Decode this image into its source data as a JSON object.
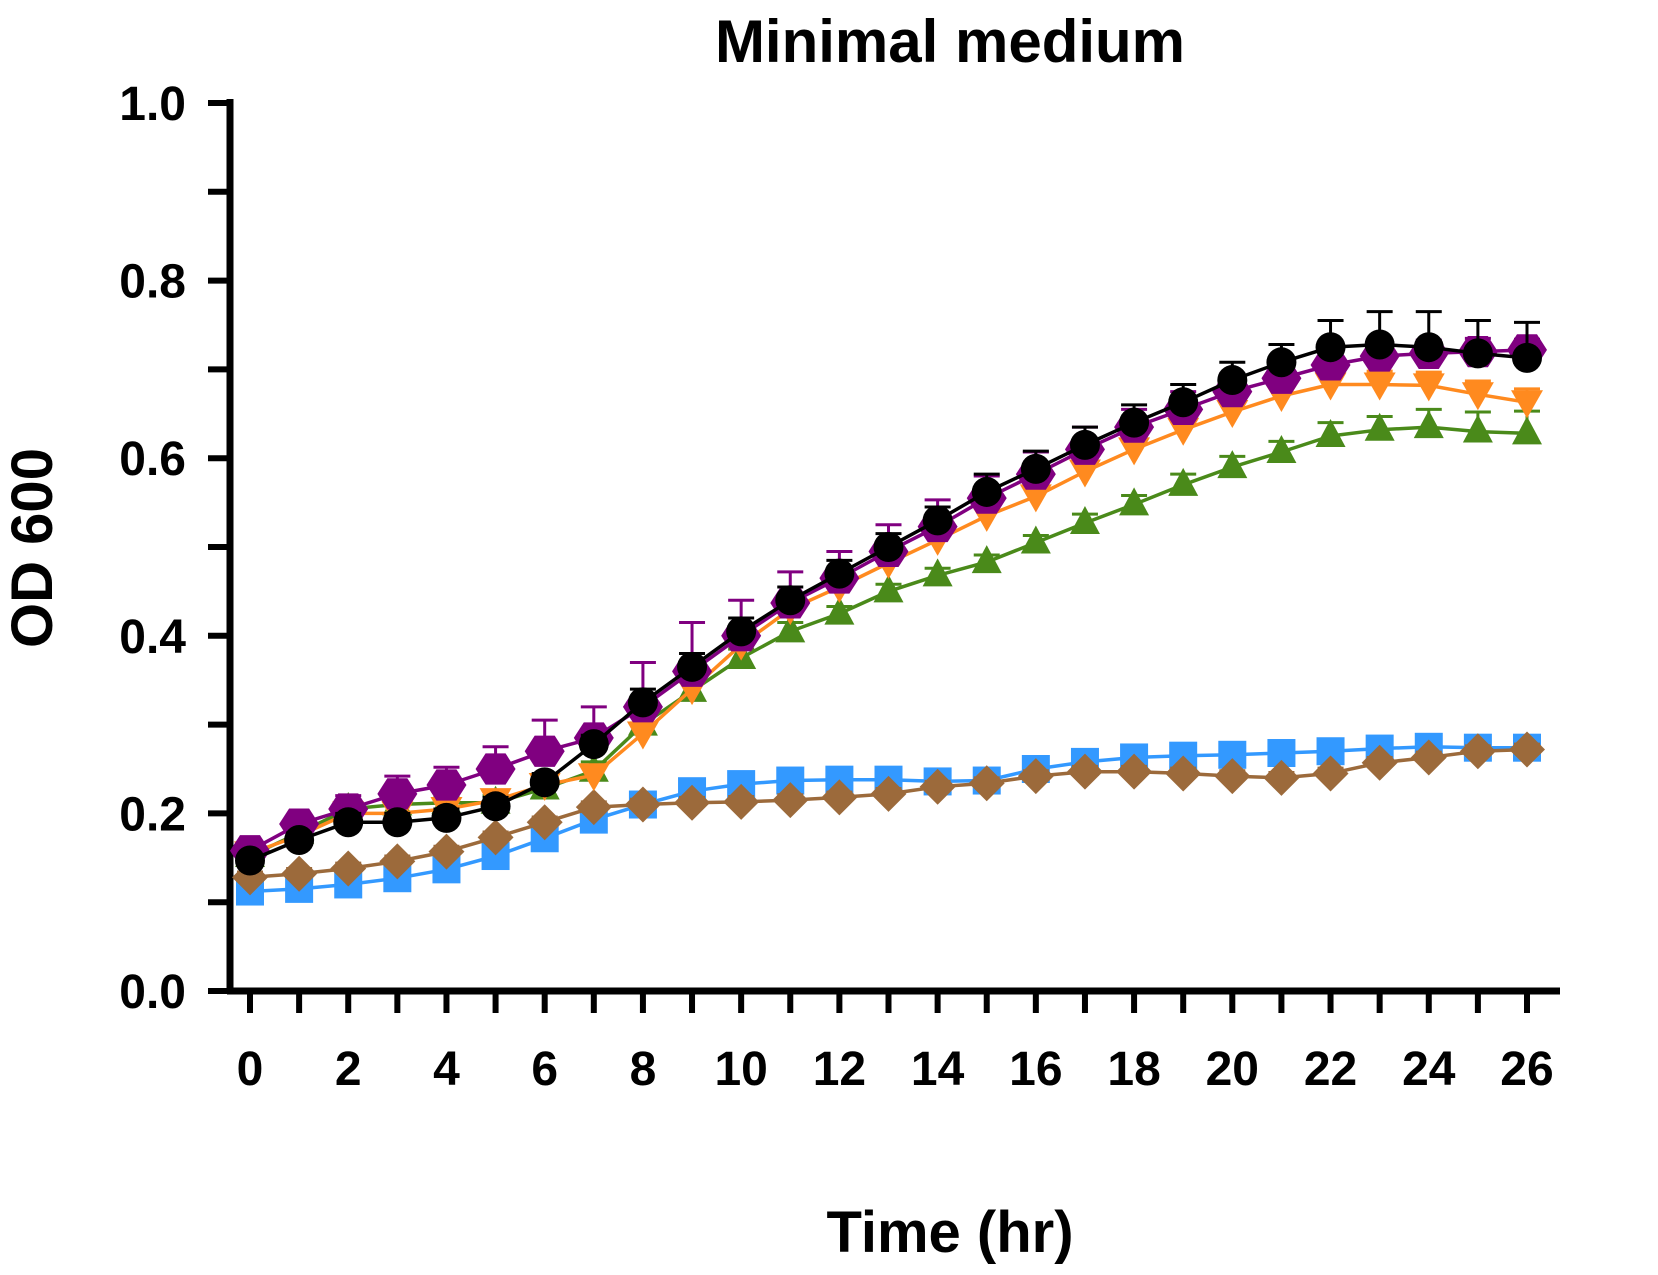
{
  "chart_data": {
    "type": "line",
    "title": "Minimal medium",
    "xlabel": "Time (hr)",
    "ylabel": "OD 600",
    "xlim": [
      0,
      26
    ],
    "ylim": [
      0,
      1.0
    ],
    "x_ticks": [
      "0",
      "2",
      "4",
      "6",
      "8",
      "10",
      "12",
      "14",
      "16",
      "18",
      "20",
      "22",
      "24",
      "26"
    ],
    "y_ticks": [
      "0.0",
      "0.2",
      "0.4",
      "0.6",
      "0.8",
      "1.0"
    ],
    "grid": false,
    "legend": "none",
    "x": [
      0,
      1,
      2,
      3,
      4,
      5,
      6,
      7,
      8,
      9,
      10,
      11,
      12,
      13,
      14,
      15,
      16,
      17,
      18,
      19,
      20,
      21,
      22,
      23,
      24,
      25,
      26
    ],
    "series": [
      {
        "color": "#3399FF",
        "marker": "square",
        "values": [
          0.112,
          0.115,
          0.12,
          0.127,
          0.137,
          0.152,
          0.172,
          0.193,
          0.21,
          0.225,
          0.233,
          0.237,
          0.238,
          0.238,
          0.236,
          0.237,
          0.25,
          0.258,
          0.263,
          0.265,
          0.266,
          0.268,
          0.27,
          0.273,
          0.275,
          0.274,
          0.274
        ],
        "error": [
          0.005,
          0.005,
          0.005,
          0.005,
          0.005,
          0.005,
          0.005,
          0.006,
          0.006,
          0.006,
          0.006,
          0.006,
          0.006,
          0.006,
          0.006,
          0.006,
          0.006,
          0.006,
          0.006,
          0.006,
          0.006,
          0.006,
          0.006,
          0.006,
          0.006,
          0.006,
          0.006
        ]
      },
      {
        "color": "#9C6A3B",
        "marker": "diamond",
        "values": [
          0.128,
          0.132,
          0.138,
          0.146,
          0.157,
          0.173,
          0.19,
          0.207,
          0.21,
          0.212,
          0.213,
          0.215,
          0.218,
          0.222,
          0.23,
          0.234,
          0.242,
          0.247,
          0.247,
          0.245,
          0.242,
          0.24,
          0.245,
          0.257,
          0.263,
          0.27,
          0.272
        ],
        "error": [
          0.006,
          0.006,
          0.006,
          0.006,
          0.006,
          0.006,
          0.006,
          0.006,
          0.006,
          0.006,
          0.006,
          0.006,
          0.006,
          0.006,
          0.006,
          0.006,
          0.006,
          0.006,
          0.006,
          0.006,
          0.006,
          0.006,
          0.006,
          0.006,
          0.006,
          0.006,
          0.006
        ]
      },
      {
        "color": "#4A8A1A",
        "marker": "triangle-up",
        "values": [
          0.152,
          0.178,
          0.205,
          0.21,
          0.212,
          0.212,
          0.228,
          0.248,
          0.3,
          0.338,
          0.375,
          0.405,
          0.425,
          0.45,
          0.468,
          0.483,
          0.505,
          0.527,
          0.548,
          0.57,
          0.59,
          0.607,
          0.625,
          0.632,
          0.635,
          0.63,
          0.628
        ],
        "error": [
          0.005,
          0.008,
          0.008,
          0.008,
          0.008,
          0.008,
          0.008,
          0.01,
          0.01,
          0.01,
          0.01,
          0.01,
          0.008,
          0.008,
          0.008,
          0.008,
          0.008,
          0.01,
          0.01,
          0.012,
          0.012,
          0.012,
          0.015,
          0.015,
          0.02,
          0.022,
          0.025
        ]
      },
      {
        "color": "#FF8A1F",
        "marker": "triangle-down",
        "values": [
          0.155,
          0.175,
          0.2,
          0.2,
          0.205,
          0.215,
          0.232,
          0.243,
          0.29,
          0.34,
          0.39,
          0.43,
          0.455,
          0.482,
          0.508,
          0.535,
          0.557,
          0.585,
          0.61,
          0.632,
          0.652,
          0.67,
          0.683,
          0.683,
          0.682,
          0.672,
          0.663
        ],
        "error": [
          0.005,
          0.008,
          0.01,
          0.01,
          0.01,
          0.01,
          0.01,
          0.01,
          0.012,
          0.012,
          0.015,
          0.015,
          0.015,
          0.015,
          0.015,
          0.015,
          0.015,
          0.015,
          0.015,
          0.015,
          0.015,
          0.015,
          0.015,
          0.015,
          0.015,
          0.015,
          0.015
        ]
      },
      {
        "color": "#800080",
        "marker": "hexagon",
        "values": [
          0.158,
          0.188,
          0.205,
          0.222,
          0.232,
          0.25,
          0.27,
          0.285,
          0.32,
          0.36,
          0.4,
          0.437,
          0.465,
          0.495,
          0.523,
          0.555,
          0.582,
          0.61,
          0.635,
          0.655,
          0.675,
          0.69,
          0.705,
          0.715,
          0.718,
          0.72,
          0.722
        ],
        "error": [
          0.005,
          0.01,
          0.015,
          0.02,
          0.02,
          0.025,
          0.035,
          0.035,
          0.05,
          0.055,
          0.04,
          0.035,
          0.03,
          0.03,
          0.03,
          0.025,
          0.025,
          0.025,
          0.02,
          0.02,
          0.02,
          0.02,
          0.02,
          0.02,
          0.015,
          0.015,
          0.012
        ]
      },
      {
        "color": "#000000",
        "marker": "circle",
        "values": [
          0.147,
          0.17,
          0.19,
          0.19,
          0.195,
          0.208,
          0.235,
          0.278,
          0.325,
          0.365,
          0.405,
          0.44,
          0.47,
          0.5,
          0.53,
          0.562,
          0.588,
          0.615,
          0.64,
          0.663,
          0.688,
          0.708,
          0.725,
          0.728,
          0.725,
          0.718,
          0.713
        ],
        "error": [
          0.005,
          0.008,
          0.01,
          0.01,
          0.01,
          0.01,
          0.01,
          0.01,
          0.015,
          0.015,
          0.015,
          0.015,
          0.015,
          0.015,
          0.015,
          0.02,
          0.02,
          0.02,
          0.02,
          0.02,
          0.02,
          0.02,
          0.03,
          0.037,
          0.04,
          0.037,
          0.04
        ]
      }
    ]
  }
}
